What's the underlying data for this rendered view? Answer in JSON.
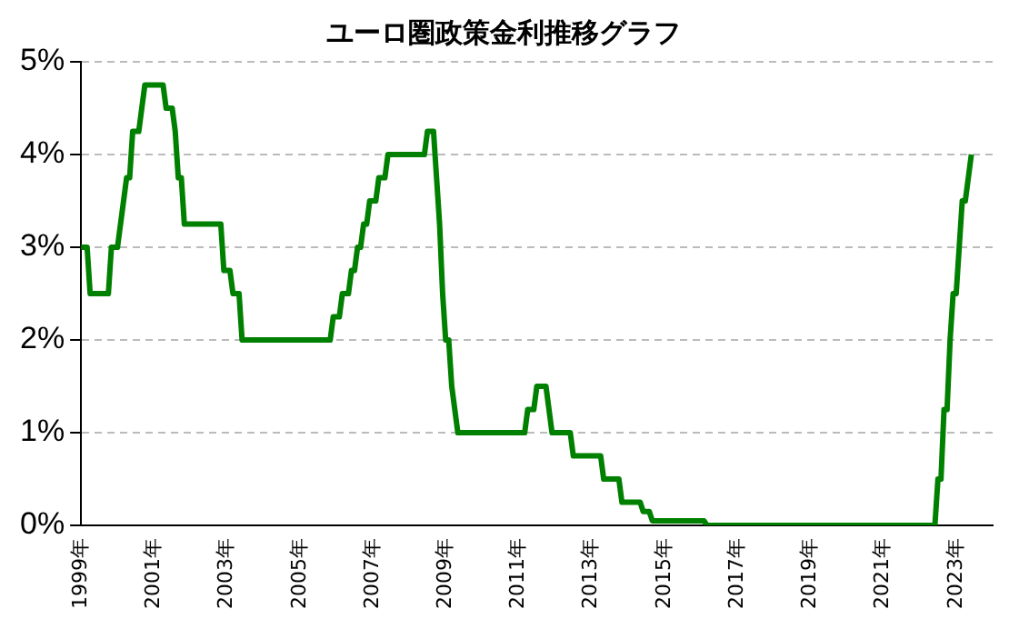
{
  "chart_data": {
    "type": "line",
    "title": "ユーロ圏政策金利推移グラフ",
    "x": [
      "1999-01",
      "1999-03",
      "1999-04",
      "1999-10",
      "1999-11",
      "2000-01",
      "2000-02",
      "2000-03",
      "2000-04",
      "2000-05",
      "2000-06",
      "2000-08",
      "2000-09",
      "2000-10",
      "2001-04",
      "2001-05",
      "2001-07",
      "2001-08",
      "2001-09",
      "2001-10",
      "2001-11",
      "2002-11",
      "2002-12",
      "2003-02",
      "2003-03",
      "2003-05",
      "2003-06",
      "2005-11",
      "2005-12",
      "2006-02",
      "2006-03",
      "2006-05",
      "2006-06",
      "2006-07",
      "2006-08",
      "2006-09",
      "2006-10",
      "2006-11",
      "2006-12",
      "2007-02",
      "2007-03",
      "2007-05",
      "2007-06",
      "2008-06",
      "2008-07",
      "2008-09",
      "2008-10",
      "2008-11",
      "2008-12",
      "2009-01",
      "2009-02",
      "2009-03",
      "2009-04",
      "2009-05",
      "2011-03",
      "2011-04",
      "2011-06",
      "2011-07",
      "2011-10",
      "2011-11",
      "2011-12",
      "2012-06",
      "2012-07",
      "2013-04",
      "2013-05",
      "2013-10",
      "2013-11",
      "2014-05",
      "2014-06",
      "2014-08",
      "2014-09",
      "2016-02",
      "2016-03",
      "2022-06",
      "2022-07",
      "2022-08",
      "2022-09",
      "2022-10",
      "2022-11",
      "2022-12",
      "2023-01",
      "2023-02",
      "2023-03",
      "2023-04",
      "2023-05",
      "2023-06"
    ],
    "series": [
      {
        "color": "#008000",
        "values": [
          3.0,
          3.0,
          2.5,
          2.5,
          3.0,
          3.0,
          3.25,
          3.5,
          3.75,
          3.75,
          4.25,
          4.25,
          4.5,
          4.75,
          4.75,
          4.5,
          4.5,
          4.25,
          3.75,
          3.75,
          3.25,
          3.25,
          2.75,
          2.75,
          2.5,
          2.5,
          2.0,
          2.0,
          2.25,
          2.25,
          2.5,
          2.5,
          2.75,
          2.75,
          3.0,
          3.0,
          3.25,
          3.25,
          3.5,
          3.5,
          3.75,
          3.75,
          4.0,
          4.0,
          4.25,
          4.25,
          3.75,
          3.25,
          2.5,
          2.0,
          2.0,
          1.5,
          1.25,
          1.0,
          1.0,
          1.25,
          1.25,
          1.5,
          1.5,
          1.25,
          1.0,
          1.0,
          0.75,
          0.75,
          0.5,
          0.5,
          0.25,
          0.25,
          0.15,
          0.15,
          0.05,
          0.05,
          0,
          0,
          0.5,
          0.5,
          1.25,
          1.25,
          2.0,
          2.5,
          2.5,
          3.0,
          3.5,
          3.5,
          3.75,
          4.0
        ]
      }
    ],
    "xlim": [
      "1999-01",
      "2024-01"
    ],
    "xticks": [
      {
        "value": "1999-01",
        "label": "1999年"
      },
      {
        "value": "2001-01",
        "label": "2001年"
      },
      {
        "value": "2003-01",
        "label": "2003年"
      },
      {
        "value": "2005-01",
        "label": "2005年"
      },
      {
        "value": "2007-01",
        "label": "2007年"
      },
      {
        "value": "2009-01",
        "label": "2009年"
      },
      {
        "value": "2011-01",
        "label": "2011年"
      },
      {
        "value": "2013-01",
        "label": "2013年"
      },
      {
        "value": "2015-01",
        "label": "2015年"
      },
      {
        "value": "2017-01",
        "label": "2017年"
      },
      {
        "value": "2019-01",
        "label": "2019年"
      },
      {
        "value": "2021-01",
        "label": "2021年"
      },
      {
        "value": "2023-01",
        "label": "2023年"
      }
    ],
    "ylim": [
      0,
      5
    ],
    "yticks": [
      {
        "value": 0,
        "label": "0%"
      },
      {
        "value": 1,
        "label": "1%"
      },
      {
        "value": 2,
        "label": "2%"
      },
      {
        "value": 3,
        "label": "3%"
      },
      {
        "value": 4,
        "label": "4%"
      },
      {
        "value": 5,
        "label": "5%"
      }
    ],
    "grid": "y",
    "legend": false,
    "marker": "none",
    "line_style": "solid"
  }
}
